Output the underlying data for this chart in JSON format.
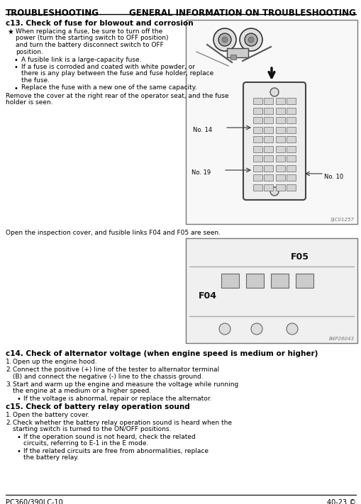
{
  "header_left": "TROUBLESHOOTING",
  "header_right": "GENERAL INFORMATION ON TROUBLESHOOTING",
  "footer_left": "PC360/390LC-10",
  "footer_right": "40-23 ©",
  "bg_color": "#ffffff",
  "section_c13_title": "c13. Check of fuse for blowout and corrosion",
  "section_c14_title": "c14. Check of alternator voltage (when engine speed is medium or higher)",
  "section_c15_title": "c15. Check of battery relay operation sound",
  "c13_star": "When replacing a fuse, be sure to turn off the power (turn the starting switch to OFF position) and turn the battery disconnect switch to OFF position.",
  "c13_sub1": "A fusible link is a large-capacity fuse.",
  "c13_sub2a": "If a fuse is corroded and coated with white powder, or",
  "c13_sub2b": "there is any play between the fuse and fuse holder, replace",
  "c13_sub2c": "the fuse.",
  "c13_sub3": "Replace the fuse with a new one of the same capacity.",
  "c13_para1a": "Remove the cover at the right rear of the operator seat, and the fuse",
  "c13_para1b": "holder is seen.",
  "c13_para2": "Open the inspection cover, and fusible links F04 and F05 are seen.",
  "c14_item1": "Open up the engine hood.",
  "c14_item2": "Connect the positive (+) line of the tester to alternator terminal (B) and connect the negative (-) line to the chassis ground.",
  "c14_item3": "Start and warm up the engine and measure the voltage while running the engine at a medium or a higher speed.",
  "c14_sub1": "If the voltage is abnormal, repair or replace the alternator.",
  "c15_item1": "Open the battery cover.",
  "c15_item2": "Check whether the battery relay operation sound is heard when the starting switch is turned to the ON/OFF positions.",
  "c15_sub1": "If the operation sound is not heard, check the related circuits, referring to E-1 in the E mode.",
  "c15_sub2": "If the related circuits are free from abnormalities, replace the battery relay.",
  "img1_ref": "SJC01257",
  "img2_ref": "B4P26043"
}
